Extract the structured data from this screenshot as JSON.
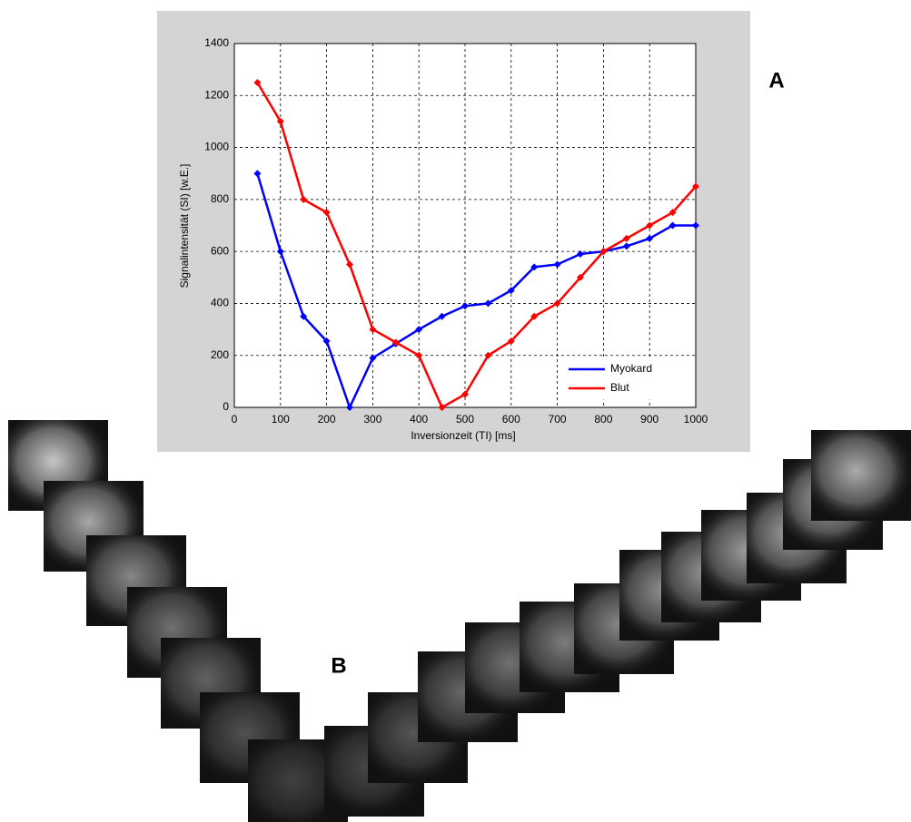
{
  "chart_data": {
    "type": "line",
    "x_label": "Inversionzeit (TI) [ms]",
    "y_label": "Signalintensität (SI) [w.E.]",
    "annotations": [
      "A",
      "B"
    ],
    "x": [
      50,
      100,
      150,
      200,
      250,
      300,
      350,
      400,
      450,
      500,
      550,
      600,
      650,
      700,
      750,
      800,
      850,
      900,
      950,
      1000
    ],
    "series": [
      {
        "name": "Myokard",
        "color": "#0000ff",
        "values": [
          900,
          600,
          350,
          255,
          0,
          190,
          245,
          300,
          350,
          390,
          400,
          450,
          540,
          550,
          590,
          600,
          620,
          650,
          700,
          700
        ]
      },
      {
        "name": "Blut",
        "color": "#ff0000",
        "values": [
          1250,
          1100,
          800,
          750,
          550,
          300,
          250,
          200,
          0,
          50,
          200,
          255,
          350,
          400,
          500,
          600,
          650,
          700,
          750,
          850
        ]
      }
    ],
    "xlim": [
      0,
      1000
    ],
    "xticks": [
      0,
      100,
      200,
      300,
      400,
      500,
      600,
      700,
      800,
      900,
      1000
    ],
    "ylim": [
      0,
      1400
    ],
    "yticks": [
      0,
      200,
      400,
      600,
      800,
      1000,
      1200,
      1400
    ],
    "grid": true,
    "legend": "lower right"
  }
}
